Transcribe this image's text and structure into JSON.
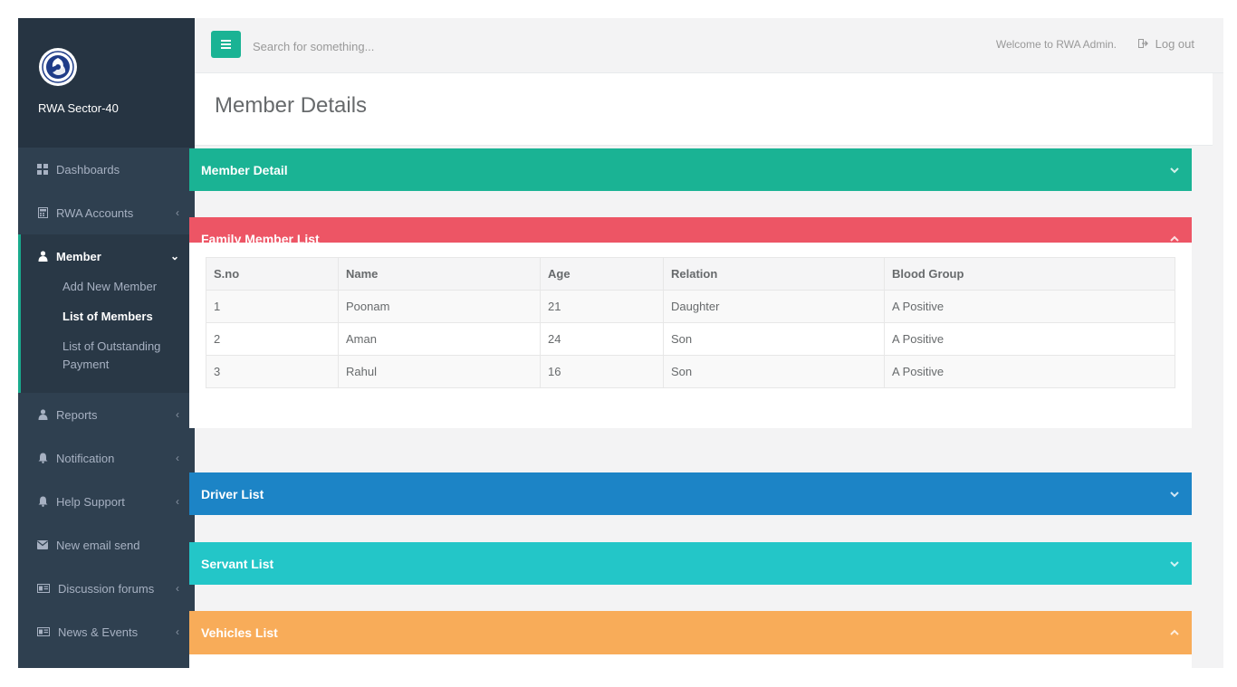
{
  "brand": {
    "name": "RWA Sector-40",
    "logo": "rwa-logo"
  },
  "sidebar": {
    "items": [
      {
        "label": "Dashboards",
        "icon": "grid-icon",
        "arrow": ""
      },
      {
        "label": "RWA Accounts",
        "icon": "calculator-icon",
        "arrow": "‹"
      },
      {
        "label": "Member",
        "icon": "user-icon",
        "arrow": "⌄"
      },
      {
        "label": "Reports",
        "icon": "user-icon",
        "arrow": "‹"
      },
      {
        "label": "Notification",
        "icon": "bell-icon",
        "arrow": "‹"
      },
      {
        "label": "Help Support",
        "icon": "bell-icon",
        "arrow": "‹"
      },
      {
        "label": "New email send",
        "icon": "envelope-icon",
        "arrow": ""
      },
      {
        "label": "Discussion forums",
        "icon": "card-icon",
        "arrow": "‹"
      },
      {
        "label": "News & Events",
        "icon": "card-icon",
        "arrow": "‹"
      }
    ],
    "submenu": [
      "Add New Member",
      "List of Members",
      "List of Outstanding Payment"
    ]
  },
  "topbar": {
    "search_placeholder": "Search for something...",
    "welcome": "Welcome to RWA Admin.",
    "logout": "Log out"
  },
  "page": {
    "title": "Member Details"
  },
  "panels": {
    "member_detail": "Member Detail",
    "family_list": "Family Member List",
    "driver_list": "Driver List",
    "servant_list": "Servant List",
    "vehicles_list": "Vehicles List"
  },
  "family_table": {
    "headers": [
      "S.no",
      "Name",
      "Age",
      "Relation",
      "Blood Group"
    ],
    "rows": [
      [
        "1",
        "Poonam",
        "21",
        "Daughter",
        "A Positive"
      ],
      [
        "2",
        "Aman",
        "24",
        "Son",
        "A Positive"
      ],
      [
        "3",
        "Rahul",
        "16",
        "Son",
        "A Positive"
      ]
    ]
  },
  "colors": {
    "sidebar": "#2f4050",
    "accent_green": "#1ab394",
    "red": "#ed5565",
    "blue": "#1c84c6",
    "cyan": "#23c6c8",
    "orange": "#f8ac59"
  }
}
